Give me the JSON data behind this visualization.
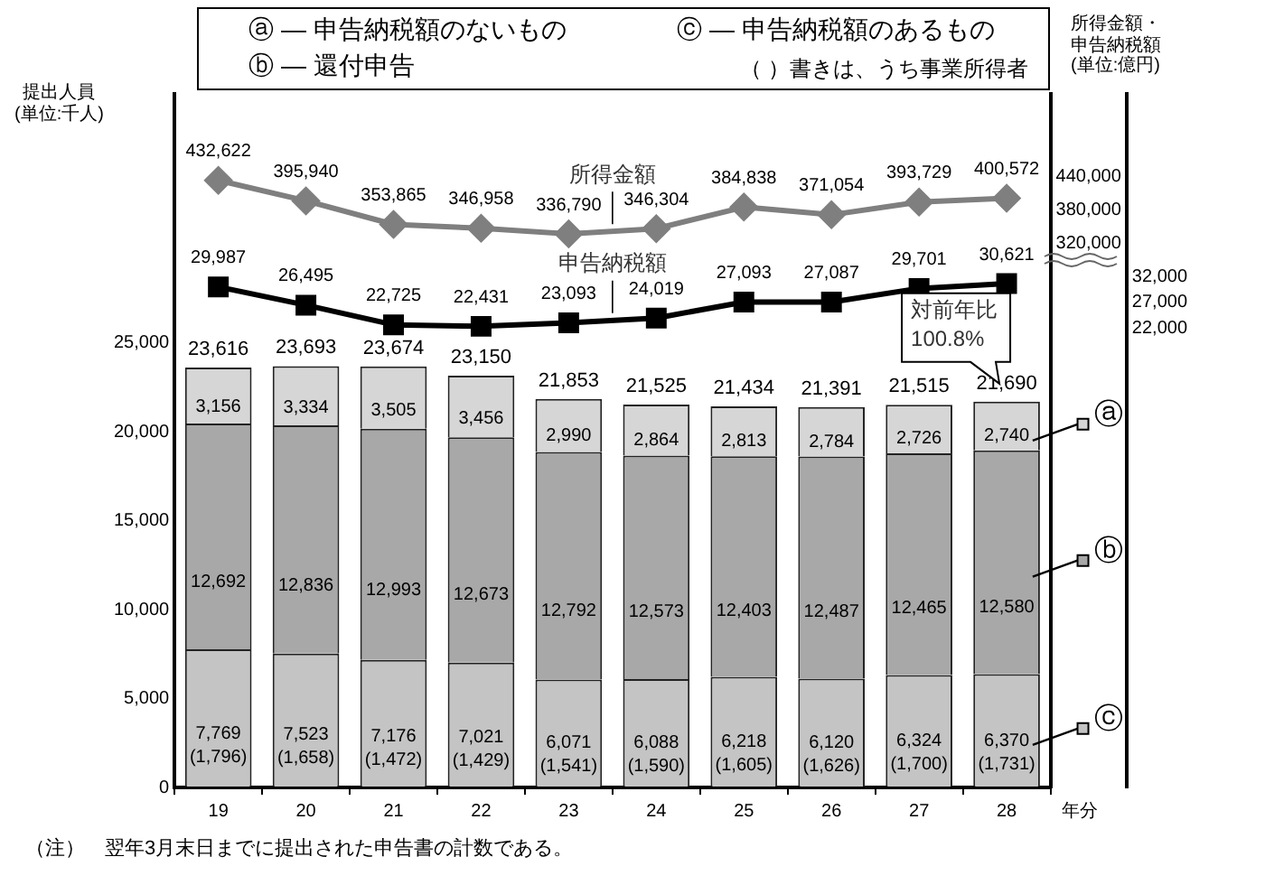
{
  "chart_data": {
    "type": "bar",
    "stacked": true,
    "ylabel": "提出人員\n(単位:千人)",
    "y2label": "所得金額・申告納税額(単位:億円)",
    "xlabel": "年分",
    "categories": [
      "19",
      "20",
      "21",
      "22",
      "23",
      "24",
      "25",
      "26",
      "27",
      "28"
    ],
    "series": [
      {
        "name": "ⓒ",
        "color": "#c4c4c4",
        "values": [
          7769,
          7523,
          7176,
          7021,
          6071,
          6088,
          6218,
          6120,
          6324,
          6370
        ],
        "value_labels": [
          "7,769\n(1,796)",
          "7,523\n(1,658)",
          "7,176\n(1,472)",
          "7,021\n(1,429)",
          "6,071\n(1,541)",
          "6,088\n(1,590)",
          "6,218\n(1,605)",
          "6,120\n(1,626)",
          "6,324\n(1,700)",
          "6,370\n(1,731)"
        ]
      },
      {
        "name": "ⓑ",
        "color": "#a8a8a8",
        "values": [
          12692,
          12836,
          12993,
          12673,
          12792,
          12573,
          12403,
          12487,
          12465,
          12580
        ],
        "value_labels": [
          "12,692",
          "12,836",
          "12,993",
          "12,673",
          "12,792",
          "12,573",
          "12,403",
          "12,487",
          "12,465",
          "12,580"
        ]
      },
      {
        "name": "ⓐ",
        "color": "#d6d6d6",
        "values": [
          3156,
          3334,
          3505,
          3456,
          2990,
          2864,
          2813,
          2784,
          2726,
          2740
        ],
        "value_labels": [
          "3,156",
          "3,334",
          "3,505",
          "3,456",
          "2,990",
          "2,864",
          "2,813",
          "2,784",
          "2,726",
          "2,740"
        ]
      },
      {
        "name": "所得金額",
        "type": "line",
        "axis": "y2",
        "color": "#7f7f7f",
        "marker": "diamond",
        "values": [
          432622,
          395940,
          353865,
          346958,
          336790,
          346304,
          384838,
          371054,
          393729,
          400572
        ],
        "value_labels": [
          "432,622",
          "395,940",
          "353,865",
          "346,958",
          "336,790",
          "346,304",
          "384,838",
          "371,054",
          "393,729",
          "400,572"
        ]
      },
      {
        "name": "申告納税額",
        "type": "line",
        "axis": "y3",
        "color": "#000000",
        "marker": "square",
        "values": [
          29987,
          26495,
          22725,
          22431,
          23093,
          24019,
          27093,
          27087,
          29701,
          30621
        ],
        "value_labels": [
          "29,987",
          "26,495",
          "22,725",
          "22,431",
          "23,093",
          "24,019",
          "27,093",
          "27,087",
          "29,701",
          "30,621"
        ]
      }
    ],
    "totals": [
      "23,616",
      "23,693",
      "23,674",
      "23,150",
      "21,853",
      "21,525",
      "21,434",
      "21,391",
      "21,515",
      "21,690"
    ],
    "ylim": [
      0,
      39000
    ],
    "yticks": [
      0,
      {
        "value": 5000,
        "label": "5,000"
      },
      {
        "value": 10000,
        "label": "10,000"
      },
      {
        "value": 15000,
        "label": "15,000"
      },
      {
        "value": 20000,
        "label": "20,000"
      },
      {
        "value": 25000,
        "label": "25,000"
      }
    ],
    "y2lim": [
      -652000,
      587000
    ],
    "y2ticks": [
      {
        "value": 320000,
        "label": "320,000"
      },
      {
        "value": 380000,
        "label": "380,000"
      },
      {
        "value": 440000,
        "label": "440,000"
      }
    ],
    "y3lim": [
      -66000,
      67000
    ],
    "y3ticks": [
      {
        "value": 22000,
        "label": "22,000"
      },
      {
        "value": 27000,
        "label": "27,000"
      },
      {
        "value": 32000,
        "label": "32,000"
      }
    ],
    "annotations": [
      "ⓐ — 申告納税額のないもの",
      "ⓑ — 還付申告",
      "ⓒ — 申告納税額のあるもの",
      "（ ）書きは、うち事業所得者",
      {
        "text": "対前年比\n100.8%",
        "x": "28",
        "y": 21690
      },
      "（注）　翌年3月末日までに提出された申告書の計数である。"
    ],
    "grid": false,
    "legend": "right"
  }
}
